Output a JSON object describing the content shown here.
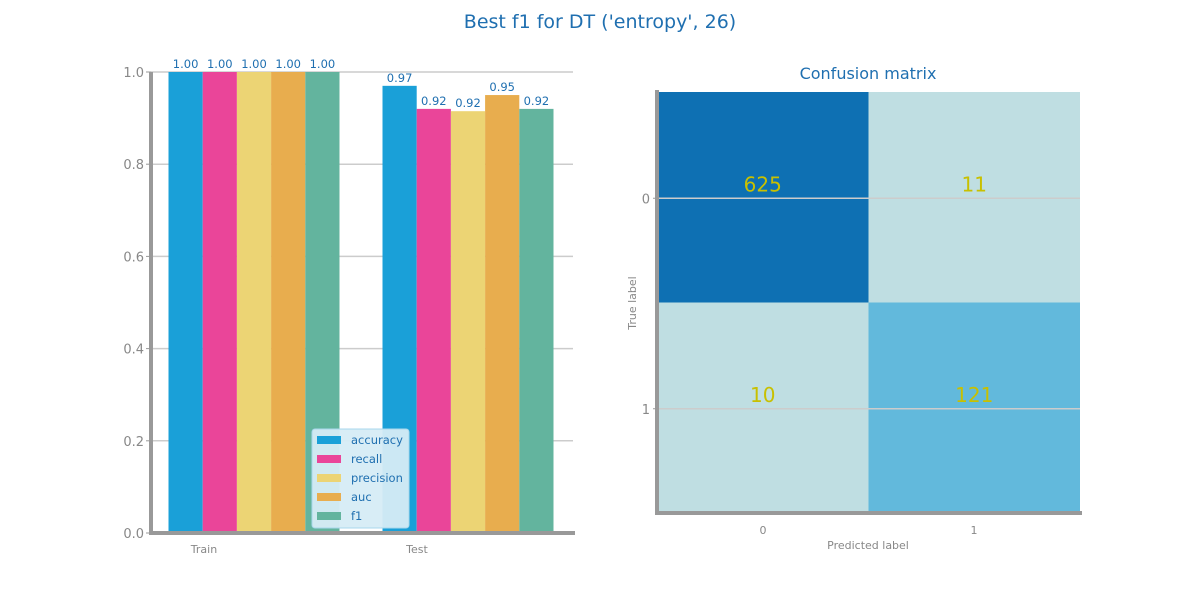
{
  "figure": {
    "title": "Best f1 for DT ('entropy', 26)"
  },
  "colors": {
    "title": "#1f6fb0",
    "axis": "#999999",
    "grid": "#cccccc",
    "tick_text": "#888888",
    "value_label": "#1f6fb0",
    "cm_text": "#c8c000",
    "legend_bg": "#d6ecf6",
    "legend_border": "#a9d7ec",
    "legend_text": "#1f6fb0"
  },
  "chart_data": [
    {
      "type": "bar",
      "categories": [
        "Train",
        "Test"
      ],
      "ylim": [
        0,
        1
      ],
      "yticks": [
        "0.0",
        "0.2",
        "0.4",
        "0.6",
        "0.8",
        "1.0"
      ],
      "legend_position": "lower-right",
      "series": [
        {
          "name": "accuracy",
          "color": "#1aa0d8",
          "values": [
            1.0,
            0.97
          ],
          "labels": [
            "1.00",
            "0.97"
          ]
        },
        {
          "name": "recall",
          "color": "#ea4599",
          "values": [
            1.0,
            0.92
          ],
          "labels": [
            "1.00",
            "0.92"
          ]
        },
        {
          "name": "precision",
          "color": "#ecd474",
          "values": [
            1.0,
            0.915
          ],
          "labels": [
            "1.00",
            "0.92"
          ]
        },
        {
          "name": "auc",
          "color": "#e8ad4e",
          "values": [
            1.0,
            0.95
          ],
          "labels": [
            "1.00",
            "0.95"
          ]
        },
        {
          "name": "f1",
          "color": "#63b49e",
          "values": [
            1.0,
            0.92
          ],
          "labels": [
            "1.00",
            "0.92"
          ]
        }
      ]
    },
    {
      "type": "heatmap",
      "title": "Confusion matrix",
      "xlabel": "Predicted label",
      "ylabel": "True label",
      "x_ticks": [
        "0",
        "1"
      ],
      "y_ticks": [
        "0",
        "1"
      ],
      "values": [
        [
          625,
          11
        ],
        [
          10,
          121
        ]
      ],
      "labels": [
        [
          "625",
          "11"
        ],
        [
          "10",
          "121"
        ]
      ],
      "cell_colors": [
        [
          "#0e70b3",
          "#bfdee2"
        ],
        [
          "#bfdee2",
          "#62b9dc"
        ]
      ]
    }
  ]
}
